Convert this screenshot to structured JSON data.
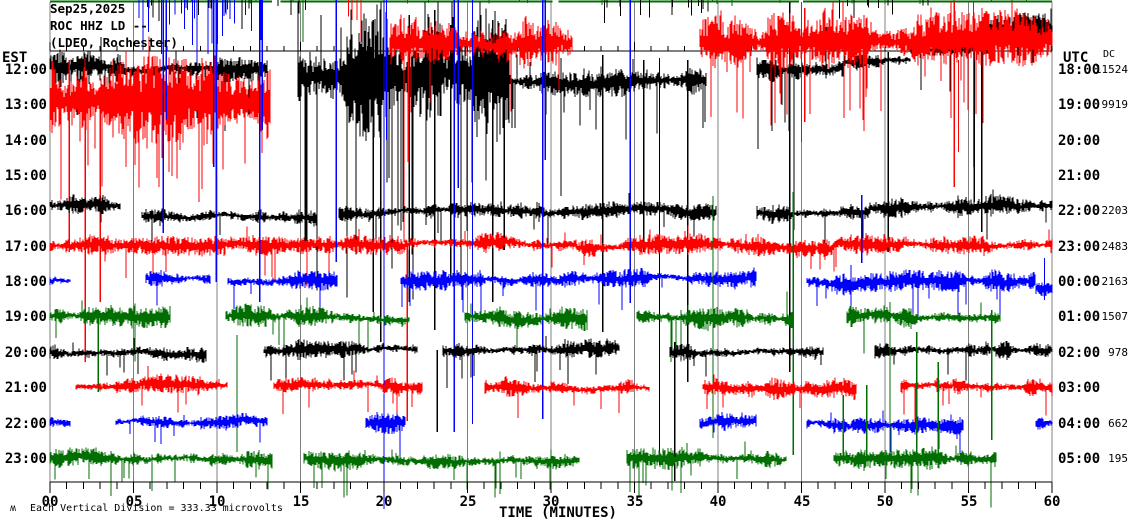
{
  "title": {
    "line1": "Sep25,2025",
    "line2": "ROC HHZ LD --",
    "line3": "(LDEO, Rochester)"
  },
  "axes": {
    "left_header": "EST",
    "right_header": "UTC",
    "dc_header": "DC",
    "x_label": "TIME (MINUTES)",
    "x_ticks": [
      "00",
      "05",
      "10",
      "15",
      "20",
      "25",
      "30",
      "35",
      "40",
      "45",
      "50",
      "55",
      "60"
    ]
  },
  "footer": {
    "glyph": "ʍ",
    "caption": "Each Vertical Division =  333.33 microvolts"
  },
  "colors": {
    "black": "#000000",
    "red": "#ff0000",
    "blue": "#0000ff",
    "green": "#006e00",
    "grid": "#808080",
    "background": "#ffffff"
  },
  "chart_data": {
    "type": "line",
    "subtype": "helicorder-seismogram",
    "title": "Sep25,2025 ROC HHZ LD -- (LDEO, Rochester)",
    "xlabel": "TIME (MINUTES)",
    "x_range": [
      0,
      60
    ],
    "x_tick_minor": 1,
    "x_tick_major": 5,
    "grid": "vertical-major",
    "legend_position": "none",
    "vertical_division_microvolts": 333.33,
    "rows": [
      {
        "est": "12:00",
        "utc": "18:00",
        "dc": "11524",
        "color": "black",
        "segments": [
          [
            0,
            4.2,
            -3,
            14,
            16,
            0.05,
            60
          ],
          [
            4.2,
            13,
            0,
            9,
            11,
            0.04,
            50
          ],
          [
            14.8,
            27.5,
            8,
            58,
            52,
            0.1,
            210
          ],
          [
            27.5,
            39.3,
            12,
            10,
            12,
            0.05,
            60
          ],
          [
            42.3,
            47.5,
            0,
            13,
            15,
            0.06,
            90
          ],
          [
            47.5,
            51.5,
            -7,
            8,
            9,
            0.03,
            40
          ],
          [
            51.5,
            56.2,
            -20,
            9,
            10,
            0.03,
            40
          ],
          [
            56.2,
            60,
            -41,
            13,
            13,
            0.04,
            50
          ]
        ],
        "spikes": [
          [
            19.35,
            20,
            312
          ],
          [
            19.8,
            18,
            342
          ],
          [
            21.5,
            15,
            302
          ],
          [
            23.05,
            10,
            330
          ],
          [
            24.0,
            25,
            282
          ],
          [
            26.5,
            20,
            302
          ],
          [
            27.2,
            30,
            250
          ],
          [
            30.6,
            58,
            196
          ],
          [
            33.1,
            55,
            332
          ],
          [
            35.55,
            60,
            252
          ],
          [
            36.5,
            58,
            465
          ],
          [
            38.2,
            60,
            382
          ],
          [
            44.3,
            2,
            372
          ],
          [
            44.55,
            28,
            230
          ],
          [
            50.2,
            52,
            252
          ],
          [
            55.35,
            38,
            202
          ],
          [
            55.8,
            32,
            232
          ]
        ]
      },
      {
        "est": "13:00",
        "utc": "19:00",
        "dc": "9919",
        "color": "red",
        "segments": [
          [
            0,
            13.2,
            -5,
            42,
            40,
            0.07,
            90
          ],
          [
            20.3,
            31.3,
            -60,
            28,
            24,
            0.05,
            70
          ],
          [
            38.9,
            47,
            -62,
            26,
            22,
            0.05,
            70
          ],
          [
            47,
            60,
            -62,
            26,
            22,
            0.06,
            80
          ]
        ],
        "spikes": [
          [
            1.15,
            60,
            252
          ],
          [
            2.1,
            92,
            362
          ],
          [
            3.0,
            95,
            302
          ],
          [
            21.2,
            18,
            242
          ],
          [
            21.45,
            28,
            162
          ],
          [
            45.0,
            2,
            142
          ],
          [
            45.2,
            8,
            122
          ],
          [
            53.95,
            2,
            72
          ],
          [
            54.15,
            2,
            187
          ],
          [
            54.4,
            60,
            152
          ],
          [
            55.3,
            2,
            167
          ]
        ]
      },
      {
        "est": "14:00",
        "utc": "20:00",
        "dc": "",
        "color": "blue",
        "segments": [],
        "spikes": []
      },
      {
        "est": "15:00",
        "utc": "21:00",
        "dc": "",
        "color": "green",
        "segments": [],
        "spikes": []
      },
      {
        "est": "16:00",
        "utc": "22:00",
        "dc": "2203",
        "color": "black",
        "segments": [
          [
            0,
            4.2,
            -5,
            8,
            8,
            0.02,
            30
          ],
          [
            5.5,
            16,
            6,
            9,
            9,
            0.02,
            30
          ],
          [
            17.3,
            31,
            3,
            8,
            8,
            0.03,
            40
          ],
          [
            31,
            39.9,
            1,
            7,
            7,
            0.02,
            30
          ],
          [
            42.3,
            49,
            2,
            9,
            9,
            0.03,
            40
          ],
          [
            49,
            60,
            -2,
            9,
            9,
            0.02,
            30
          ]
        ],
        "spikes": []
      },
      {
        "est": "17:00",
        "utc": "23:00",
        "dc": "2483",
        "color": "red",
        "segments": [
          [
            0,
            10.5,
            0,
            8,
            8,
            0.02,
            30
          ],
          [
            10.5,
            21.3,
            -2,
            8,
            8,
            0.03,
            40
          ],
          [
            21.3,
            31.5,
            -1,
            8,
            8,
            0.02,
            30
          ],
          [
            31.5,
            41.3,
            2,
            8,
            8,
            0.02,
            30
          ],
          [
            41.3,
            47,
            0,
            9,
            9,
            0.03,
            40
          ],
          [
            47,
            53,
            -3,
            9,
            9,
            0.02,
            30
          ],
          [
            53,
            60,
            0,
            8,
            8,
            0.02,
            30
          ]
        ],
        "spikes": [
          [
            21.4,
            245,
            421
          ]
        ]
      },
      {
        "est": "18:00",
        "utc": "00:00",
        "dc": "2163",
        "color": "blue",
        "segments": [
          [
            0,
            1.2,
            0,
            5,
            5,
            0,
            0
          ],
          [
            5.7,
            9.6,
            -3,
            7,
            7,
            0.02,
            25
          ],
          [
            10.6,
            17.2,
            0,
            8,
            8,
            0.03,
            30
          ],
          [
            21,
            30.5,
            0,
            8,
            9,
            0.03,
            35
          ],
          [
            30.5,
            42.3,
            -2,
            8,
            8,
            0.02,
            30
          ],
          [
            45.3,
            59,
            0,
            9,
            9,
            0.03,
            35
          ],
          [
            59,
            60,
            8,
            7,
            7,
            0,
            0
          ]
        ],
        "spikes": [
          [
            6.78,
            0,
            233
          ],
          [
            6.95,
            0,
            120
          ],
          [
            9.8,
            0,
            167
          ],
          [
            9.95,
            0,
            282
          ],
          [
            12.55,
            0,
            302
          ],
          [
            12.7,
            0,
            130
          ],
          [
            17.15,
            0,
            262
          ],
          [
            20.0,
            0,
            509
          ],
          [
            20.15,
            0,
            140
          ],
          [
            24.2,
            0,
            432
          ],
          [
            24.45,
            0,
            188
          ],
          [
            25.3,
            0,
            424
          ],
          [
            29.5,
            0,
            419
          ],
          [
            29.65,
            0,
            160
          ],
          [
            34.75,
            0,
            303
          ],
          [
            48.6,
            195,
            263
          ],
          [
            59.55,
            258,
            300
          ]
        ]
      },
      {
        "est": "19:00",
        "utc": "01:00",
        "dc": "1507",
        "color": "green",
        "segments": [
          [
            0,
            7.2,
            0,
            9,
            9,
            0.03,
            35
          ],
          [
            10.5,
            21.5,
            0,
            9,
            9,
            0.03,
            35
          ],
          [
            24.8,
            32.2,
            0,
            9,
            9,
            0.03,
            35
          ],
          [
            35.1,
            44.5,
            0,
            9,
            10,
            0.04,
            45
          ],
          [
            47.7,
            56.9,
            0,
            9,
            9,
            0.03,
            35
          ]
        ],
        "spikes": [
          [
            2.9,
            310,
            392
          ],
          [
            11.2,
            335,
            452
          ],
          [
            15.15,
            0,
            42
          ],
          [
            39.7,
            196,
            438
          ],
          [
            44.5,
            192,
            455
          ]
        ]
      },
      {
        "est": "20:00",
        "utc": "02:00",
        "dc": "978",
        "color": "black",
        "segments": [
          [
            0,
            9.4,
            0,
            8,
            8,
            0.02,
            30
          ],
          [
            12.8,
            22,
            0,
            8,
            8,
            0.02,
            30
          ],
          [
            23.5,
            34.1,
            0,
            8,
            8,
            0.03,
            35
          ],
          [
            37.1,
            46.3,
            0,
            8,
            8,
            0.02,
            30
          ],
          [
            49.4,
            60,
            0,
            8,
            8,
            0.02,
            30
          ]
        ],
        "spikes": [
          [
            23.2,
            350,
            432
          ],
          [
            37.4,
            342,
            481
          ]
        ]
      },
      {
        "est": "21:00",
        "utc": "03:00",
        "dc": "",
        "color": "red",
        "segments": [
          [
            1.5,
            10.6,
            0,
            8,
            8,
            0.02,
            30
          ],
          [
            13.4,
            22.3,
            -2,
            8,
            8,
            0.02,
            30
          ],
          [
            26,
            35.9,
            0,
            9,
            9,
            0.03,
            35
          ],
          [
            39.1,
            48.3,
            0,
            9,
            9,
            0.02,
            30
          ],
          [
            50.9,
            60,
            0,
            8,
            8,
            0.02,
            30
          ]
        ],
        "spikes": [
          [
            51.8,
            385,
            428
          ]
        ]
      },
      {
        "est": "22:00",
        "utc": "04:00",
        "dc": "662",
        "color": "blue",
        "segments": [
          [
            0,
            1.2,
            0,
            5,
            5,
            0,
            0
          ],
          [
            3.9,
            13,
            0,
            6,
            6,
            0.02,
            25
          ],
          [
            18.9,
            21.3,
            0,
            8,
            9,
            0.05,
            40
          ],
          [
            38.9,
            42.3,
            0,
            8,
            8,
            0.02,
            25
          ],
          [
            45.3,
            54.7,
            0,
            8,
            8,
            0.03,
            30
          ],
          [
            59,
            60,
            0,
            7,
            7,
            0,
            0
          ]
        ],
        "spikes": []
      },
      {
        "est": "23:00",
        "utc": "05:00",
        "dc": "195",
        "color": "green",
        "segments": [
          [
            0,
            13.3,
            0,
            8,
            8,
            0.02,
            30
          ],
          [
            15.2,
            31.7,
            0,
            8,
            9,
            0.03,
            35
          ],
          [
            34.5,
            44.1,
            0,
            9,
            9,
            0.03,
            35
          ],
          [
            46.9,
            56.7,
            0,
            9,
            10,
            0.05,
            45
          ]
        ],
        "spikes": [
          [
            47.5,
            395,
            462
          ],
          [
            48.9,
            385,
            459
          ],
          [
            50.3,
            302,
            456
          ],
          [
            51.9,
            332,
            457
          ],
          [
            53.2,
            362,
            456
          ],
          [
            56.4,
            310,
            440
          ]
        ]
      }
    ],
    "top_edge": {
      "line_color": "green",
      "gaps": [
        [
          13.3,
          13.8
        ],
        [
          30.1,
          30.45
        ],
        [
          44.85,
          45.1
        ]
      ],
      "stub_clusters": [
        {
          "color": "blue",
          "m0": 5.0,
          "m1": 13.0,
          "count": 30,
          "lmin": 8,
          "lmax": 95
        },
        {
          "color": "black",
          "m0": 5.5,
          "m1": 15.5,
          "count": 18,
          "lmin": 5,
          "lmax": 40
        },
        {
          "color": "black",
          "m0": 33.0,
          "m1": 41.0,
          "count": 14,
          "lmin": 6,
          "lmax": 30
        },
        {
          "color": "black",
          "m0": 47.0,
          "m1": 54.0,
          "count": 10,
          "lmin": 5,
          "lmax": 22
        },
        {
          "color": "green",
          "m0": 0.5,
          "m1": 59.5,
          "count": 26,
          "lmin": 2,
          "lmax": 7
        },
        {
          "color": "red",
          "m0": 17.5,
          "m1": 19.5,
          "count": 5,
          "lmin": 10,
          "lmax": 45
        }
      ]
    }
  }
}
